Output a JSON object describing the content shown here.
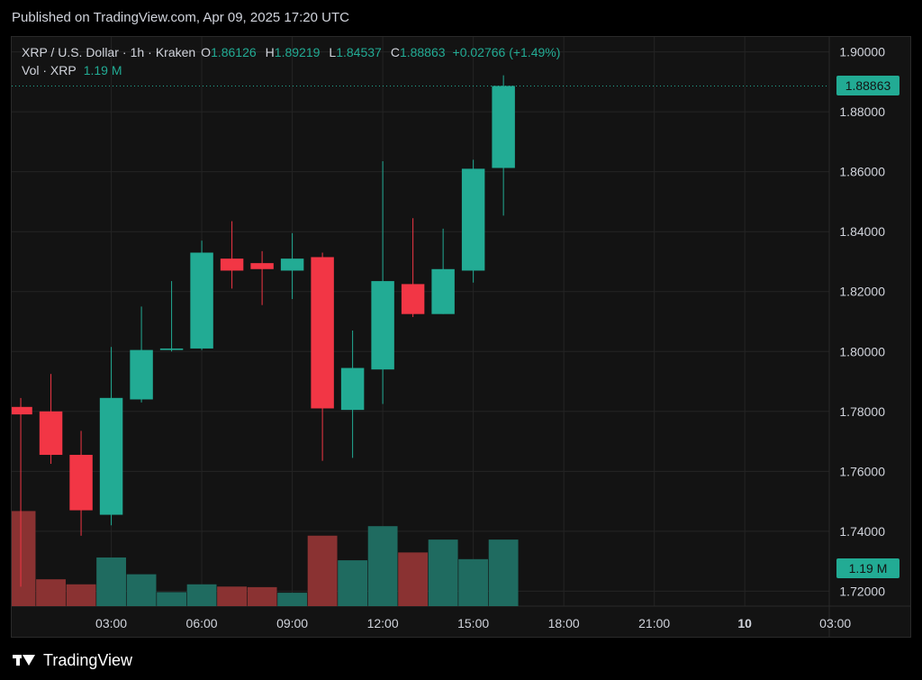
{
  "header": {
    "published": "Published on TradingView.com, Apr 09, 2025 17:20 UTC"
  },
  "legend": {
    "symbol": "XRP / U.S. Dollar",
    "interval": "1h",
    "exchange": "Kraken",
    "open_label": "O",
    "open": "1.86126",
    "high_label": "H",
    "high": "1.89219",
    "low_label": "L",
    "low": "1.84537",
    "close_label": "C",
    "close": "1.88863",
    "change": "+0.02766 (+1.49%)",
    "vol_label": "Vol · XRP",
    "vol_value": "1.19 M"
  },
  "price_tag": {
    "last_price": "1.88863",
    "last_volume": "1.19 M"
  },
  "footer": {
    "brand": "TradingView"
  },
  "colors": {
    "up": "#22ab94",
    "down": "#f23645",
    "up_vol": "#1f6b60",
    "down_vol": "#8a3232",
    "grid": "#242424",
    "text": "#d1d4dc"
  },
  "chart_data": {
    "type": "candlestick",
    "y_ticks": [
      "1.90000",
      "1.88000",
      "1.86000",
      "1.84000",
      "1.82000",
      "1.80000",
      "1.78000",
      "1.76000",
      "1.74000",
      "1.72000"
    ],
    "ylim": [
      1.715,
      1.905
    ],
    "x_ticks": [
      "03:00",
      "06:00",
      "09:00",
      "12:00",
      "15:00",
      "18:00",
      "21:00",
      "10",
      "03:00"
    ],
    "x_tick_hours": [
      3,
      6,
      9,
      12,
      15,
      18,
      21,
      24,
      27
    ],
    "xlim_hours": [
      -0.3,
      26.8
    ],
    "last_price_line": 1.88863,
    "candles": [
      {
        "hour": 0,
        "open": 1.7815,
        "high": 1.7845,
        "low": 1.7215,
        "close": 1.779
      },
      {
        "hour": 1,
        "open": 1.78,
        "high": 1.7925,
        "low": 1.7625,
        "close": 1.7655
      },
      {
        "hour": 2,
        "open": 1.7655,
        "high": 1.7735,
        "low": 1.7385,
        "close": 1.747
      },
      {
        "hour": 3,
        "open": 1.7455,
        "high": 1.8015,
        "low": 1.742,
        "close": 1.7845
      },
      {
        "hour": 4,
        "open": 1.784,
        "high": 1.815,
        "low": 1.783,
        "close": 1.8005
      },
      {
        "hour": 5,
        "open": 1.8005,
        "high": 1.8235,
        "low": 1.8,
        "close": 1.801
      },
      {
        "hour": 6,
        "open": 1.801,
        "high": 1.837,
        "low": 1.8005,
        "close": 1.833
      },
      {
        "hour": 7,
        "open": 1.831,
        "high": 1.8435,
        "low": 1.821,
        "close": 1.827
      },
      {
        "hour": 8,
        "open": 1.8295,
        "high": 1.8335,
        "low": 1.8155,
        "close": 1.8275
      },
      {
        "hour": 9,
        "open": 1.827,
        "high": 1.8395,
        "low": 1.8175,
        "close": 1.831
      },
      {
        "hour": 10,
        "open": 1.8315,
        "high": 1.833,
        "low": 1.7635,
        "close": 1.781
      },
      {
        "hour": 11,
        "open": 1.7805,
        "high": 1.807,
        "low": 1.7645,
        "close": 1.7945
      },
      {
        "hour": 12,
        "open": 1.794,
        "high": 1.8635,
        "low": 1.7825,
        "close": 1.8235
      },
      {
        "hour": 13,
        "open": 1.8225,
        "high": 1.8445,
        "low": 1.8115,
        "close": 1.8125
      },
      {
        "hour": 14,
        "open": 1.8125,
        "high": 1.841,
        "low": 1.8125,
        "close": 1.8275
      },
      {
        "hour": 15,
        "open": 1.827,
        "high": 1.864,
        "low": 1.823,
        "close": 1.861
      },
      {
        "hour": 16,
        "open": 1.86126,
        "high": 1.89219,
        "low": 1.84537,
        "close": 1.88863
      }
    ],
    "volume_scale_max": 1.9,
    "volumes_m": [
      1.05,
      1.7,
      0.48,
      0.39,
      0.87,
      0.57,
      0.25,
      0.39,
      0.35,
      0.34,
      0.24,
      1.26,
      0.82,
      1.43,
      0.96,
      1.19,
      0.84,
      1.19
    ],
    "volume_hours": [
      -1,
      0,
      1,
      2,
      3,
      4,
      5,
      6,
      7,
      8,
      9,
      10,
      11,
      12,
      13,
      14,
      15,
      16
    ],
    "volume_up": [
      false,
      false,
      false,
      false,
      true,
      true,
      true,
      true,
      false,
      false,
      true,
      false,
      true,
      true,
      false,
      true,
      true,
      true
    ]
  }
}
